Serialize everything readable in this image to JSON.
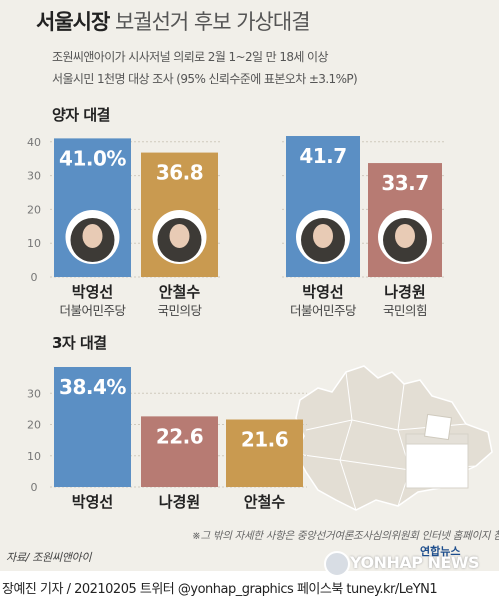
{
  "header": {
    "title_bold": "서울시장",
    "title_rest": "보궐선거 후보 가상대결",
    "subtitle_line1": "조원씨앤아이가 시사저널 의뢰로 2월 1~2일 만 18세 이상",
    "subtitle_line2": "서울시민 1천명 대상 조사 (95% 신뢰수준에 표본오차 ±3.1%P)"
  },
  "colors": {
    "background": "#f1efe9",
    "blue": "#5b8fc4",
    "gold": "#c99a50",
    "rose": "#b77b73",
    "grid": "#cfcabe"
  },
  "chart_data": [
    {
      "type": "bar",
      "title": "양자 대결",
      "categories": [
        "박영선",
        "안철수"
      ],
      "parties": [
        "더불어민주당",
        "국민의당"
      ],
      "values": [
        41.0,
        36.8
      ],
      "value_labels": [
        "41.0%",
        "36.8"
      ],
      "bar_colors": [
        "#5b8fc4",
        "#c99a50"
      ],
      "yticks": [
        0,
        10,
        20,
        30,
        40
      ],
      "ylim": [
        0,
        42
      ],
      "grid": true
    },
    {
      "type": "bar",
      "title": "",
      "categories": [
        "박영선",
        "나경원"
      ],
      "parties": [
        "더불어민주당",
        "국민의힘"
      ],
      "values": [
        41.7,
        33.7
      ],
      "value_labels": [
        "41.7",
        "33.7"
      ],
      "bar_colors": [
        "#5b8fc4",
        "#b77b73"
      ],
      "yticks": [
        0,
        10,
        20,
        30,
        40
      ],
      "ylim": [
        0,
        42
      ],
      "grid": true
    },
    {
      "type": "bar",
      "title": "3자 대결",
      "categories": [
        "박영선",
        "나경원",
        "안철수"
      ],
      "values": [
        38.4,
        22.6,
        21.6
      ],
      "value_labels": [
        "38.4%",
        "22.6",
        "21.6"
      ],
      "bar_colors": [
        "#5b8fc4",
        "#b77b73",
        "#c99a50"
      ],
      "yticks": [
        0,
        10,
        20,
        30
      ],
      "ylim": [
        0,
        40
      ],
      "grid": true
    }
  ],
  "notes": {
    "footnote": "※그 밖의 자세한 사항은 중앙선거여론조사심의위원회 인터넷 홈페이지 참조",
    "source": "자료/ 조원씨앤아이"
  },
  "branding": {
    "logo_text": "YONHAP NEWS",
    "logo_korean": "연합뉴스"
  },
  "footer": "장예진 기자 / 20210205 트위터 @yonhap_graphics  페이스북 tuney.kr/LeYN1"
}
